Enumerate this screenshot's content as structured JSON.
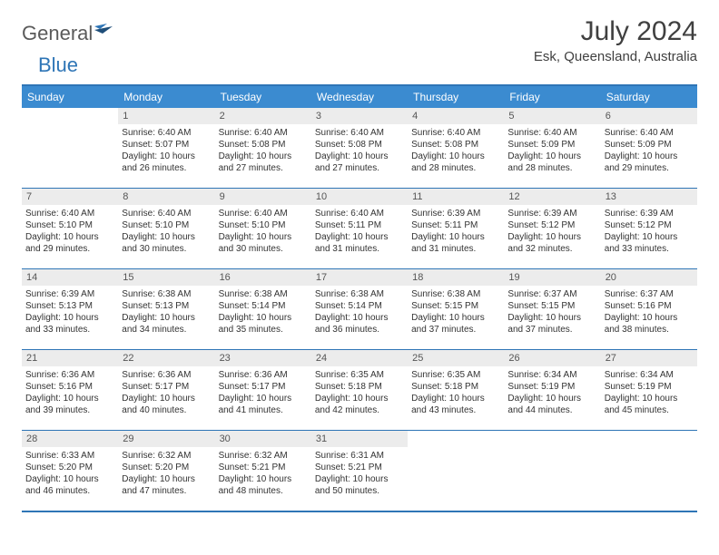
{
  "logo": {
    "word1": "General",
    "word2": "Blue"
  },
  "title": "July 2024",
  "location": "Esk, Queensland, Australia",
  "colors": {
    "header_bg": "#3b8bd0",
    "border": "#2e75b6",
    "daynum_bg": "#ececec",
    "text": "#333333",
    "title": "#404040"
  },
  "dow": [
    "Sunday",
    "Monday",
    "Tuesday",
    "Wednesday",
    "Thursday",
    "Friday",
    "Saturday"
  ],
  "weeks": [
    [
      {
        "n": "",
        "sunrise": "",
        "sunset": "",
        "day": ""
      },
      {
        "n": "1",
        "sunrise": "Sunrise: 6:40 AM",
        "sunset": "Sunset: 5:07 PM",
        "day": "Daylight: 10 hours and 26 minutes."
      },
      {
        "n": "2",
        "sunrise": "Sunrise: 6:40 AM",
        "sunset": "Sunset: 5:08 PM",
        "day": "Daylight: 10 hours and 27 minutes."
      },
      {
        "n": "3",
        "sunrise": "Sunrise: 6:40 AM",
        "sunset": "Sunset: 5:08 PM",
        "day": "Daylight: 10 hours and 27 minutes."
      },
      {
        "n": "4",
        "sunrise": "Sunrise: 6:40 AM",
        "sunset": "Sunset: 5:08 PM",
        "day": "Daylight: 10 hours and 28 minutes."
      },
      {
        "n": "5",
        "sunrise": "Sunrise: 6:40 AM",
        "sunset": "Sunset: 5:09 PM",
        "day": "Daylight: 10 hours and 28 minutes."
      },
      {
        "n": "6",
        "sunrise": "Sunrise: 6:40 AM",
        "sunset": "Sunset: 5:09 PM",
        "day": "Daylight: 10 hours and 29 minutes."
      }
    ],
    [
      {
        "n": "7",
        "sunrise": "Sunrise: 6:40 AM",
        "sunset": "Sunset: 5:10 PM",
        "day": "Daylight: 10 hours and 29 minutes."
      },
      {
        "n": "8",
        "sunrise": "Sunrise: 6:40 AM",
        "sunset": "Sunset: 5:10 PM",
        "day": "Daylight: 10 hours and 30 minutes."
      },
      {
        "n": "9",
        "sunrise": "Sunrise: 6:40 AM",
        "sunset": "Sunset: 5:10 PM",
        "day": "Daylight: 10 hours and 30 minutes."
      },
      {
        "n": "10",
        "sunrise": "Sunrise: 6:40 AM",
        "sunset": "Sunset: 5:11 PM",
        "day": "Daylight: 10 hours and 31 minutes."
      },
      {
        "n": "11",
        "sunrise": "Sunrise: 6:39 AM",
        "sunset": "Sunset: 5:11 PM",
        "day": "Daylight: 10 hours and 31 minutes."
      },
      {
        "n": "12",
        "sunrise": "Sunrise: 6:39 AM",
        "sunset": "Sunset: 5:12 PM",
        "day": "Daylight: 10 hours and 32 minutes."
      },
      {
        "n": "13",
        "sunrise": "Sunrise: 6:39 AM",
        "sunset": "Sunset: 5:12 PM",
        "day": "Daylight: 10 hours and 33 minutes."
      }
    ],
    [
      {
        "n": "14",
        "sunrise": "Sunrise: 6:39 AM",
        "sunset": "Sunset: 5:13 PM",
        "day": "Daylight: 10 hours and 33 minutes."
      },
      {
        "n": "15",
        "sunrise": "Sunrise: 6:38 AM",
        "sunset": "Sunset: 5:13 PM",
        "day": "Daylight: 10 hours and 34 minutes."
      },
      {
        "n": "16",
        "sunrise": "Sunrise: 6:38 AM",
        "sunset": "Sunset: 5:14 PM",
        "day": "Daylight: 10 hours and 35 minutes."
      },
      {
        "n": "17",
        "sunrise": "Sunrise: 6:38 AM",
        "sunset": "Sunset: 5:14 PM",
        "day": "Daylight: 10 hours and 36 minutes."
      },
      {
        "n": "18",
        "sunrise": "Sunrise: 6:38 AM",
        "sunset": "Sunset: 5:15 PM",
        "day": "Daylight: 10 hours and 37 minutes."
      },
      {
        "n": "19",
        "sunrise": "Sunrise: 6:37 AM",
        "sunset": "Sunset: 5:15 PM",
        "day": "Daylight: 10 hours and 37 minutes."
      },
      {
        "n": "20",
        "sunrise": "Sunrise: 6:37 AM",
        "sunset": "Sunset: 5:16 PM",
        "day": "Daylight: 10 hours and 38 minutes."
      }
    ],
    [
      {
        "n": "21",
        "sunrise": "Sunrise: 6:36 AM",
        "sunset": "Sunset: 5:16 PM",
        "day": "Daylight: 10 hours and 39 minutes."
      },
      {
        "n": "22",
        "sunrise": "Sunrise: 6:36 AM",
        "sunset": "Sunset: 5:17 PM",
        "day": "Daylight: 10 hours and 40 minutes."
      },
      {
        "n": "23",
        "sunrise": "Sunrise: 6:36 AM",
        "sunset": "Sunset: 5:17 PM",
        "day": "Daylight: 10 hours and 41 minutes."
      },
      {
        "n": "24",
        "sunrise": "Sunrise: 6:35 AM",
        "sunset": "Sunset: 5:18 PM",
        "day": "Daylight: 10 hours and 42 minutes."
      },
      {
        "n": "25",
        "sunrise": "Sunrise: 6:35 AM",
        "sunset": "Sunset: 5:18 PM",
        "day": "Daylight: 10 hours and 43 minutes."
      },
      {
        "n": "26",
        "sunrise": "Sunrise: 6:34 AM",
        "sunset": "Sunset: 5:19 PM",
        "day": "Daylight: 10 hours and 44 minutes."
      },
      {
        "n": "27",
        "sunrise": "Sunrise: 6:34 AM",
        "sunset": "Sunset: 5:19 PM",
        "day": "Daylight: 10 hours and 45 minutes."
      }
    ],
    [
      {
        "n": "28",
        "sunrise": "Sunrise: 6:33 AM",
        "sunset": "Sunset: 5:20 PM",
        "day": "Daylight: 10 hours and 46 minutes."
      },
      {
        "n": "29",
        "sunrise": "Sunrise: 6:32 AM",
        "sunset": "Sunset: 5:20 PM",
        "day": "Daylight: 10 hours and 47 minutes."
      },
      {
        "n": "30",
        "sunrise": "Sunrise: 6:32 AM",
        "sunset": "Sunset: 5:21 PM",
        "day": "Daylight: 10 hours and 48 minutes."
      },
      {
        "n": "31",
        "sunrise": "Sunrise: 6:31 AM",
        "sunset": "Sunset: 5:21 PM",
        "day": "Daylight: 10 hours and 50 minutes."
      },
      {
        "n": "",
        "sunrise": "",
        "sunset": "",
        "day": ""
      },
      {
        "n": "",
        "sunrise": "",
        "sunset": "",
        "day": ""
      },
      {
        "n": "",
        "sunrise": "",
        "sunset": "",
        "day": ""
      }
    ]
  ]
}
